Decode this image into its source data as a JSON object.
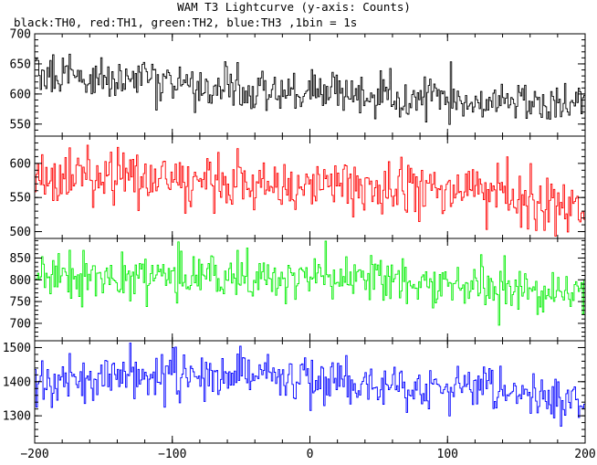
{
  "chart_data": {
    "type": "line",
    "title": "WAM T3 Lightcurve (y-axis: Counts)",
    "subtitle": "black:TH0, red:TH1, green:TH2, blue:TH3 ,1bin = 1s",
    "x_range": [
      -200,
      200
    ],
    "x_ticks": [
      -200,
      -100,
      0,
      100,
      200
    ],
    "step": 1,
    "colors": {
      "TH0": "#000000",
      "TH1": "#ff0000",
      "TH2": "#00ee00",
      "TH3": "#0000ff"
    },
    "panels": [
      {
        "series": "TH0",
        "ylim": [
          530,
          700
        ],
        "y_ticks": [
          550,
          600,
          650,
          700
        ],
        "trend": [
          [
            -200,
            640
          ],
          [
            -180,
            632
          ],
          [
            -160,
            627
          ],
          [
            -140,
            622
          ],
          [
            -120,
            625
          ],
          [
            -100,
            616
          ],
          [
            -80,
            612
          ],
          [
            -60,
            612
          ],
          [
            -40,
            606
          ],
          [
            -20,
            603
          ],
          [
            0,
            606
          ],
          [
            20,
            603
          ],
          [
            40,
            598
          ],
          [
            60,
            595
          ],
          [
            80,
            590
          ],
          [
            100,
            589
          ],
          [
            120,
            587
          ],
          [
            140,
            586
          ],
          [
            160,
            582
          ],
          [
            180,
            581
          ],
          [
            200,
            580
          ]
        ],
        "noise": 17
      },
      {
        "series": "TH1",
        "ylim": [
          490,
          640
        ],
        "y_ticks": [
          500,
          550,
          600
        ],
        "trend": [
          [
            -200,
            578
          ],
          [
            -180,
            578
          ],
          [
            -160,
            576
          ],
          [
            -140,
            579
          ],
          [
            -120,
            582
          ],
          [
            -100,
            580
          ],
          [
            -80,
            573
          ],
          [
            -60,
            573
          ],
          [
            -40,
            571
          ],
          [
            -20,
            567
          ],
          [
            0,
            566
          ],
          [
            20,
            568
          ],
          [
            40,
            565
          ],
          [
            60,
            560
          ],
          [
            80,
            560
          ],
          [
            100,
            562
          ],
          [
            120,
            552
          ],
          [
            140,
            548
          ],
          [
            160,
            543
          ],
          [
            180,
            538
          ],
          [
            200,
            535
          ]
        ],
        "noise": 20
      },
      {
        "series": "TH2",
        "ylim": [
          660,
          895
        ],
        "y_ticks": [
          700,
          750,
          800,
          850
        ],
        "trend": [
          [
            -200,
            810
          ],
          [
            -180,
            804
          ],
          [
            -160,
            806
          ],
          [
            -140,
            808
          ],
          [
            -120,
            810
          ],
          [
            -100,
            813
          ],
          [
            -80,
            807
          ],
          [
            -60,
            807
          ],
          [
            -40,
            805
          ],
          [
            -20,
            800
          ],
          [
            0,
            803
          ],
          [
            20,
            807
          ],
          [
            40,
            800
          ],
          [
            60,
            795
          ],
          [
            80,
            790
          ],
          [
            100,
            790
          ],
          [
            120,
            780
          ],
          [
            140,
            775
          ],
          [
            160,
            770
          ],
          [
            180,
            765
          ],
          [
            200,
            760
          ]
        ],
        "noise": 27
      },
      {
        "series": "TH3",
        "ylim": [
          1220,
          1520
        ],
        "y_ticks": [
          1300,
          1400,
          1500
        ],
        "trend": [
          [
            -200,
            1405
          ],
          [
            -180,
            1405
          ],
          [
            -160,
            1410
          ],
          [
            -140,
            1418
          ],
          [
            -120,
            1425
          ],
          [
            -100,
            1428
          ],
          [
            -80,
            1420
          ],
          [
            -60,
            1420
          ],
          [
            -40,
            1415
          ],
          [
            -20,
            1412
          ],
          [
            0,
            1400
          ],
          [
            20,
            1398
          ],
          [
            40,
            1395
          ],
          [
            60,
            1392
          ],
          [
            80,
            1385
          ],
          [
            100,
            1380
          ],
          [
            120,
            1375
          ],
          [
            140,
            1370
          ],
          [
            160,
            1355
          ],
          [
            180,
            1345
          ],
          [
            200,
            1335
          ]
        ],
        "noise": 33
      }
    ]
  }
}
